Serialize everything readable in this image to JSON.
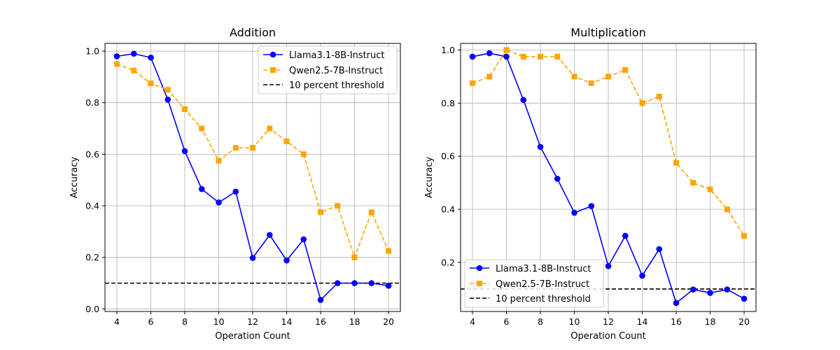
{
  "chart_data": [
    {
      "type": "line",
      "title": "Addition",
      "xlabel": "Operation Count",
      "ylabel": "Accuracy",
      "xlim": [
        3.3,
        20.7
      ],
      "ylim": [
        -0.01,
        1.03
      ],
      "xticks": [
        "4",
        "6",
        "8",
        "10",
        "12",
        "14",
        "16",
        "18",
        "20"
      ],
      "yticks": [
        "0.0",
        "0.2",
        "0.4",
        "0.6",
        "0.8",
        "1.0"
      ],
      "grid": true,
      "legend_position": "top-right",
      "x": [
        4,
        5,
        6,
        7,
        8,
        9,
        10,
        11,
        12,
        13,
        14,
        15,
        16,
        17,
        18,
        19,
        20
      ],
      "series": [
        {
          "name": "Llama3.1-8B-Instruct",
          "color": "#0000ff",
          "marker": "circle",
          "line": "solid",
          "values": [
            0.98,
            0.99,
            0.975,
            0.812,
            0.612,
            0.465,
            0.413,
            0.455,
            0.198,
            0.287,
            0.188,
            0.27,
            0.035,
            0.1,
            0.1,
            0.1,
            0.09
          ]
        },
        {
          "name": "Qwen2.5-7B-Instruct",
          "color": "#ffa500",
          "marker": "square",
          "line": "dashed",
          "values": [
            0.95,
            0.925,
            0.875,
            0.85,
            0.775,
            0.7,
            0.575,
            0.625,
            0.625,
            0.7,
            0.65,
            0.6,
            0.375,
            0.4,
            0.2,
            0.375,
            0.225
          ]
        }
      ],
      "threshold": {
        "name": "10 percent threshold",
        "value": 0.1,
        "color": "#000000",
        "line": "dashed"
      }
    },
    {
      "type": "line",
      "title": "Multiplication",
      "xlabel": "Operation Count",
      "ylabel": "Accuracy",
      "xlim": [
        3.3,
        20.7
      ],
      "ylim": [
        0.015,
        1.025
      ],
      "xticks": [
        "4",
        "6",
        "8",
        "10",
        "12",
        "14",
        "16",
        "18",
        "20"
      ],
      "yticks": [
        "0.2",
        "0.4",
        "0.6",
        "0.8",
        "1.0"
      ],
      "grid": true,
      "legend_position": "bottom-left",
      "x": [
        4,
        5,
        6,
        7,
        8,
        9,
        10,
        11,
        12,
        13,
        14,
        15,
        16,
        17,
        18,
        19,
        20
      ],
      "series": [
        {
          "name": "Llama3.1-8B-Instruct",
          "color": "#0000ff",
          "marker": "circle",
          "line": "solid",
          "values": [
            0.975,
            0.988,
            0.975,
            0.812,
            0.635,
            0.515,
            0.387,
            0.412,
            0.186,
            0.3,
            0.15,
            0.25,
            0.047,
            0.098,
            0.085,
            0.098,
            0.063
          ]
        },
        {
          "name": "Qwen2.5-7B-Instruct",
          "color": "#ffa500",
          "marker": "square",
          "line": "dashed",
          "values": [
            0.875,
            0.9,
            1.0,
            0.975,
            0.975,
            0.975,
            0.9,
            0.875,
            0.9,
            0.925,
            0.8,
            0.825,
            0.575,
            0.5,
            0.475,
            0.4,
            0.3
          ]
        }
      ],
      "threshold": {
        "name": "10 percent threshold",
        "value": 0.1,
        "color": "#000000",
        "line": "dashed"
      }
    }
  ]
}
